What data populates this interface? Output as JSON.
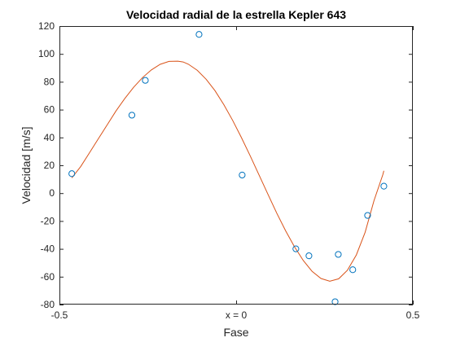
{
  "chart_data": {
    "type": "scatter",
    "title": "Velocidad radial de la estrella Kepler 643",
    "xlabel": "Fase",
    "ylabel": "Velocidad [m/s]",
    "xlim": [
      -0.5,
      0.5
    ],
    "ylim": [
      -80,
      120
    ],
    "x_ticks": [
      -0.5,
      0,
      0.5
    ],
    "x_tick_labels": [
      "-0.5",
      "x = 0",
      "0.5"
    ],
    "y_ticks": [
      -80,
      -60,
      -40,
      -20,
      0,
      20,
      40,
      60,
      80,
      100,
      120
    ],
    "y_tick_labels": [
      "-80",
      "-60",
      "-40",
      "-20",
      "0",
      "20",
      "40",
      "60",
      "80",
      "100",
      "120"
    ],
    "grid": false,
    "colors": {
      "points": "#0072BD",
      "fit": "#D95319"
    },
    "series": [
      {
        "kind": "scatter",
        "marker": "circle-open",
        "x": [
          -0.465,
          -0.295,
          -0.257,
          -0.105,
          0.017,
          0.169,
          0.206,
          0.28,
          0.289,
          0.33,
          0.372,
          0.418
        ],
        "y": [
          14,
          56,
          81,
          114,
          13,
          -40,
          -45,
          -78,
          -44,
          -55,
          -16,
          5
        ]
      },
      {
        "kind": "line",
        "x": [
          -0.465,
          -0.44,
          -0.415,
          -0.39,
          -0.365,
          -0.34,
          -0.315,
          -0.29,
          -0.265,
          -0.24,
          -0.215,
          -0.19,
          -0.165,
          -0.15,
          -0.135,
          -0.11,
          -0.085,
          -0.06,
          -0.035,
          -0.01,
          0.015,
          0.04,
          0.065,
          0.09,
          0.115,
          0.14,
          0.165,
          0.19,
          0.215,
          0.24,
          0.265,
          0.29,
          0.315,
          0.34,
          0.365,
          0.39,
          0.415,
          0.418
        ],
        "y": [
          11,
          19,
          29,
          39,
          49,
          59,
          68,
          76,
          83,
          88.5,
          92.5,
          94.6,
          94.8,
          94.2,
          92.6,
          88.2,
          81.8,
          73.6,
          63.6,
          52.3,
          39.9,
          26.6,
          12.9,
          -0.9,
          -14.4,
          -27.1,
          -38.5,
          -48.4,
          -56.2,
          -61.3,
          -63.2,
          -61.5,
          -55.3,
          -44.4,
          -28.1,
          -5.4,
          13.2,
          16
        ]
      }
    ]
  }
}
